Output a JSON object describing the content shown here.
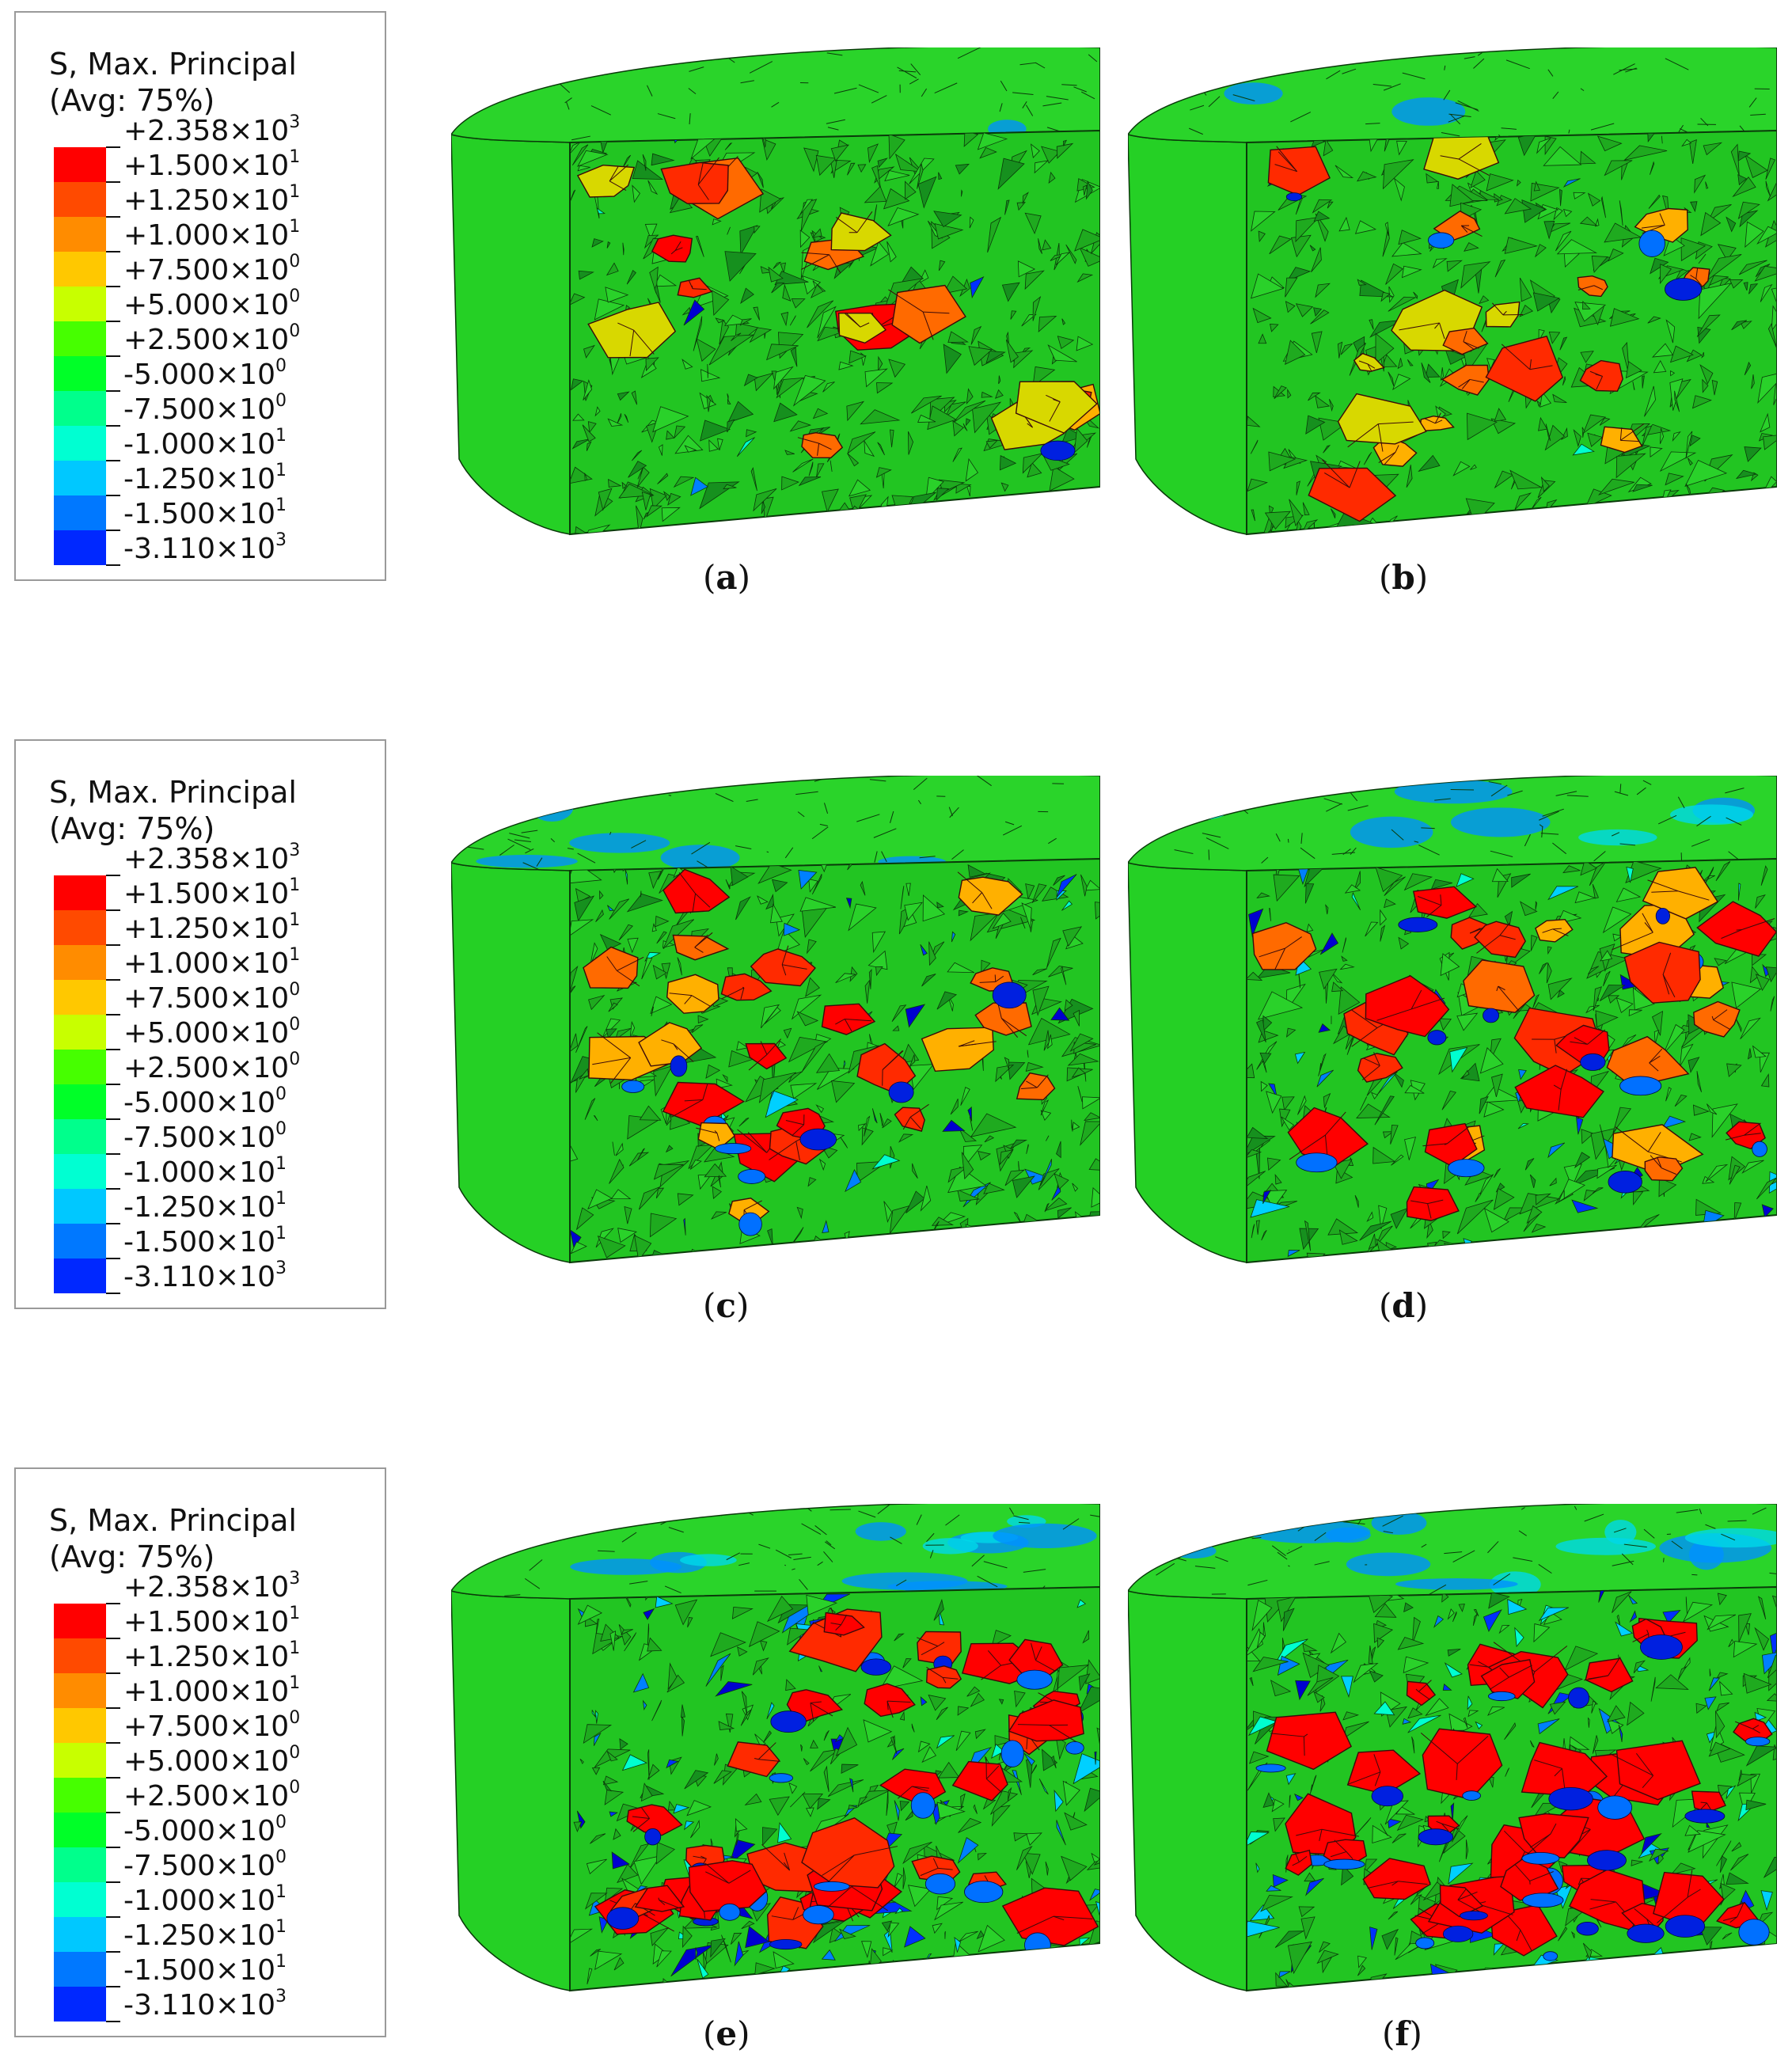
{
  "legend": {
    "title_line1": "S, Max. Principal",
    "title_line2": "(Avg: 75%)",
    "labels": [
      {
        "mant": "+2.358×10",
        "exp": "3"
      },
      {
        "mant": "+1.500×10",
        "exp": "1"
      },
      {
        "mant": "+1.250×10",
        "exp": "1"
      },
      {
        "mant": "+1.000×10",
        "exp": "1"
      },
      {
        "mant": "+7.500×10",
        "exp": "0"
      },
      {
        "mant": "+5.000×10",
        "exp": "0"
      },
      {
        "mant": "+2.500×10",
        "exp": "0"
      },
      {
        "mant": "-5.000×10",
        "exp": "0"
      },
      {
        "mant": "-7.500×10",
        "exp": "0"
      },
      {
        "mant": "-1.000×10",
        "exp": "1"
      },
      {
        "mant": "-1.250×10",
        "exp": "1"
      },
      {
        "mant": "-1.500×10",
        "exp": "1"
      },
      {
        "mant": "-3.110×10",
        "exp": "3"
      }
    ],
    "colors": [
      "#ff0000",
      "#ff4a00",
      "#ff8c00",
      "#ffc800",
      "#c8ff00",
      "#46ff00",
      "#00ff28",
      "#00ff8c",
      "#00ffd2",
      "#00c8ff",
      "#0078ff",
      "#0028ff",
      "#0000ff"
    ]
  },
  "panels": [
    {
      "letter": "a",
      "intensity": 0.1
    },
    {
      "letter": "b",
      "intensity": 0.18
    },
    {
      "letter": "c",
      "intensity": 0.42
    },
    {
      "letter": "d",
      "intensity": 0.52
    },
    {
      "letter": "e",
      "intensity": 0.8
    },
    {
      "letter": "f",
      "intensity": 0.88
    }
  ],
  "colors": {
    "mesh_green": "#1fd11f",
    "mesh_line": "#0a3a0a"
  }
}
